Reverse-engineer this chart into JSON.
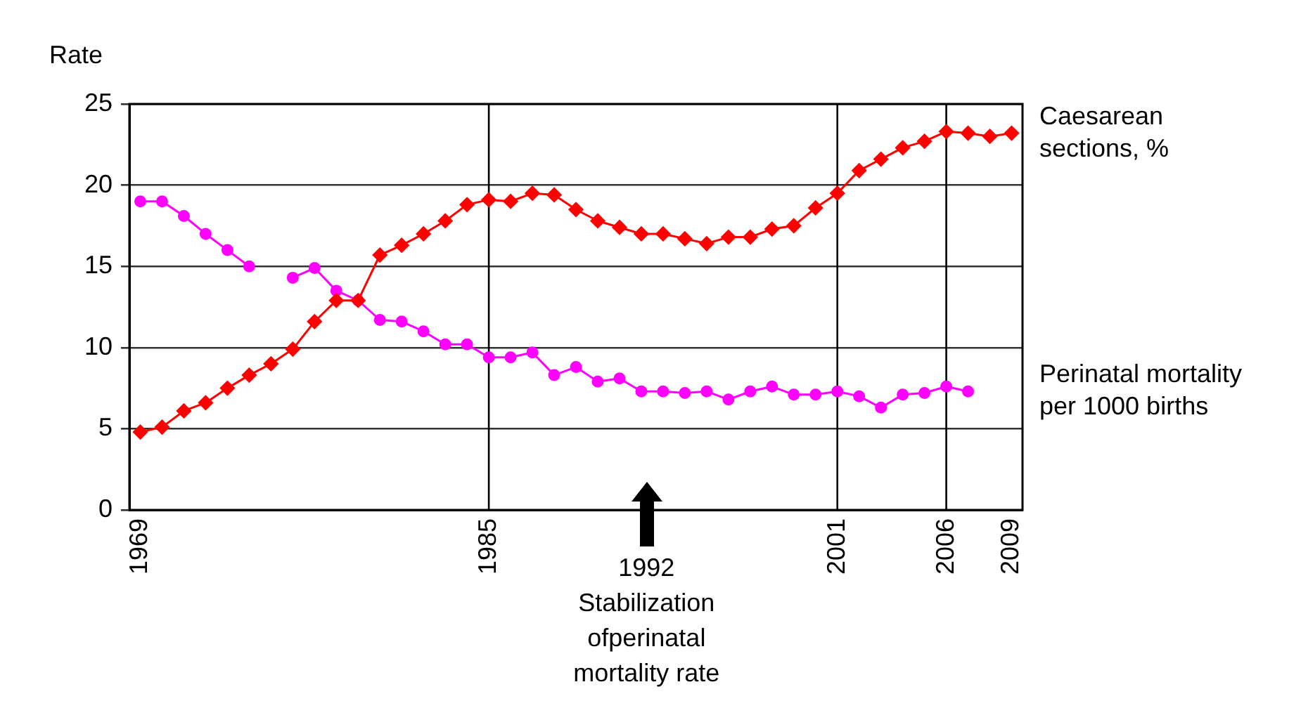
{
  "chart_data": {
    "type": "line",
    "ylabel": "Rate",
    "x": [
      1969,
      1970,
      1971,
      1972,
      1973,
      1974,
      1975,
      1976,
      1977,
      1978,
      1979,
      1980,
      1981,
      1982,
      1983,
      1984,
      1985,
      1986,
      1987,
      1988,
      1989,
      1990,
      1991,
      1992,
      1993,
      1994,
      1995,
      1996,
      1997,
      1998,
      1999,
      2000,
      2001,
      2002,
      2003,
      2004,
      2005,
      2006,
      2007,
      2008,
      2009
    ],
    "series": [
      {
        "name": "Caesarean sections, %",
        "color": "#ff0000",
        "marker": "diamond",
        "values": [
          4.8,
          5.1,
          6.1,
          6.6,
          7.5,
          8.3,
          9.0,
          9.9,
          11.6,
          12.9,
          12.9,
          15.7,
          16.3,
          17.0,
          17.8,
          18.8,
          19.1,
          19.0,
          19.5,
          19.4,
          18.5,
          17.8,
          17.4,
          17.0,
          17.0,
          16.7,
          16.4,
          16.8,
          16.8,
          17.3,
          17.5,
          18.6,
          19.5,
          20.9,
          21.6,
          22.3,
          22.7,
          23.3,
          23.2,
          23.0,
          23.2
        ]
      },
      {
        "name": "Perinatal mortality per 1000 births",
        "color": "#ff00ff",
        "marker": "circle",
        "values": [
          19.0,
          19.0,
          18.1,
          17.0,
          16.0,
          15.0,
          null,
          14.3,
          14.9,
          13.5,
          12.9,
          11.7,
          11.6,
          11.0,
          10.2,
          10.2,
          9.4,
          9.4,
          9.7,
          8.3,
          8.8,
          7.9,
          8.1,
          7.3,
          7.3,
          7.2,
          7.3,
          6.8,
          7.3,
          7.6,
          7.1,
          7.1,
          7.3,
          7.0,
          6.3,
          7.1,
          7.2,
          7.6,
          7.3,
          null,
          null
        ]
      }
    ],
    "xlim": [
      1968.5,
      2009.5
    ],
    "xticks": [
      1969,
      1985,
      2001,
      2006,
      2009
    ],
    "ylim": [
      0,
      25
    ],
    "yticks": [
      0,
      5,
      10,
      15,
      20,
      25
    ],
    "grid": "y",
    "legend": false,
    "ref_lines": [
      {
        "axis": "x",
        "value": 1985,
        "color": "#000000"
      },
      {
        "axis": "x",
        "value": 2001,
        "color": "#000000"
      },
      {
        "axis": "x",
        "value": 2006,
        "color": "#000000"
      }
    ],
    "annotations": [
      "1992\nStabilization\nofperinatal\nmortality rate"
    ]
  }
}
